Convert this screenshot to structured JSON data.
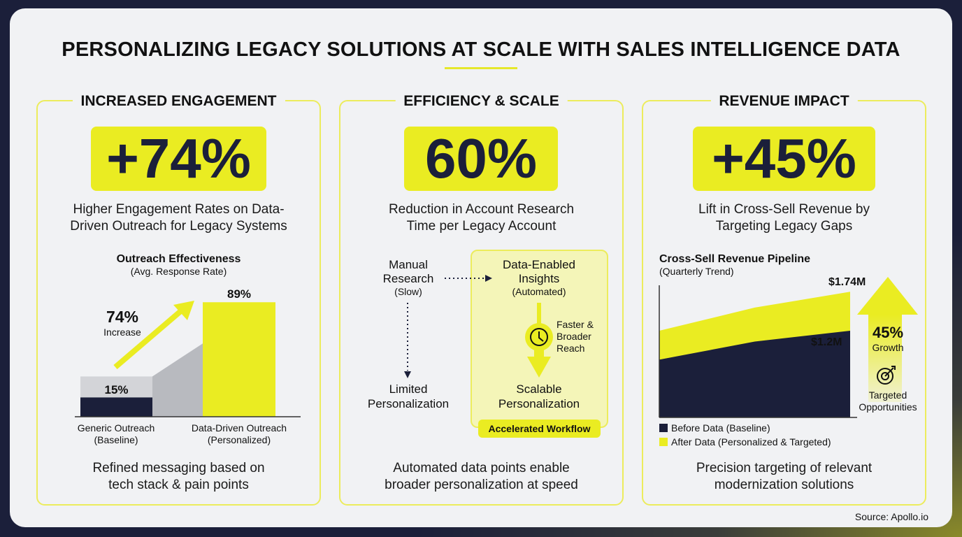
{
  "title": "PERSONALIZING LEGACY SOLUTIONS AT SCALE WITH SALES INTELLIGENCE DATA",
  "colors": {
    "accent": "#eaec22",
    "navy": "#1b1f3a",
    "gray": "#b8babf"
  },
  "panels": [
    {
      "title": "INCREASED ENGAGEMENT",
      "stat": "+74%",
      "desc1": "Higher Engagement Rates on Data-",
      "desc2": "Driven Outreach for Legacy Systems",
      "footer1": "Refined messaging based on",
      "footer2": "tech stack & pain points"
    },
    {
      "title": "EFFICIENCY & SCALE",
      "stat": "60%",
      "desc1": "Reduction in Account Research",
      "desc2": "Time per Legacy Account",
      "footer1": "Automated data points enable",
      "footer2": "broader personalization at speed"
    },
    {
      "title": "REVENUE IMPACT",
      "stat": "+45%",
      "desc1": "Lift in Cross-Sell Revenue by",
      "desc2": "Targeting Legacy Gaps",
      "footer1": "Precision targeting of relevant",
      "footer2": "modernization solutions"
    }
  ],
  "flow": {
    "manual1": "Manual",
    "manual2": "Research",
    "manual3": "(Slow)",
    "limited1": "Limited",
    "limited2": "Personalization",
    "data1": "Data-Enabled",
    "data2": "Insights",
    "data3": "(Automated)",
    "faster1": "Faster &",
    "faster2": "Broader",
    "faster3": "Reach",
    "scal1": "Scalable",
    "scal2": "Personalization",
    "badge": "Accelerated Workflow"
  },
  "chart_data": [
    {
      "type": "bar",
      "title": "Outreach Effectiveness",
      "subtitle": "(Avg. Response Rate)",
      "categories": [
        "Generic Outreach",
        "Data-Driven Outreach"
      ],
      "category_sub": [
        "(Baseline)",
        "(Personalized)"
      ],
      "values": [
        15,
        89
      ],
      "labels": [
        "15%",
        "89%"
      ],
      "ylim": [
        0,
        100
      ],
      "annotation": {
        "value": "74%",
        "label": "Increase"
      }
    },
    {
      "type": "area",
      "title": "Cross-Sell Revenue Pipeline",
      "subtitle": "(Quarterly Trend)",
      "x": [
        1,
        2,
        3
      ],
      "series": [
        {
          "name": "Before Data (Baseline)",
          "values": [
            0.8,
            1.05,
            1.2
          ]
        },
        {
          "name": "After Data (Personalized & Targeted)",
          "values": [
            1.2,
            1.52,
            1.74
          ]
        }
      ],
      "end_labels": [
        "$1.2M",
        "$1.74M"
      ],
      "ylim": [
        0,
        2.1
      ],
      "annotation": {
        "value": "45%",
        "label": "Growth",
        "note1": "Targeted",
        "note2": "Opportunities"
      }
    }
  ],
  "source": "Source: Apollo.io"
}
